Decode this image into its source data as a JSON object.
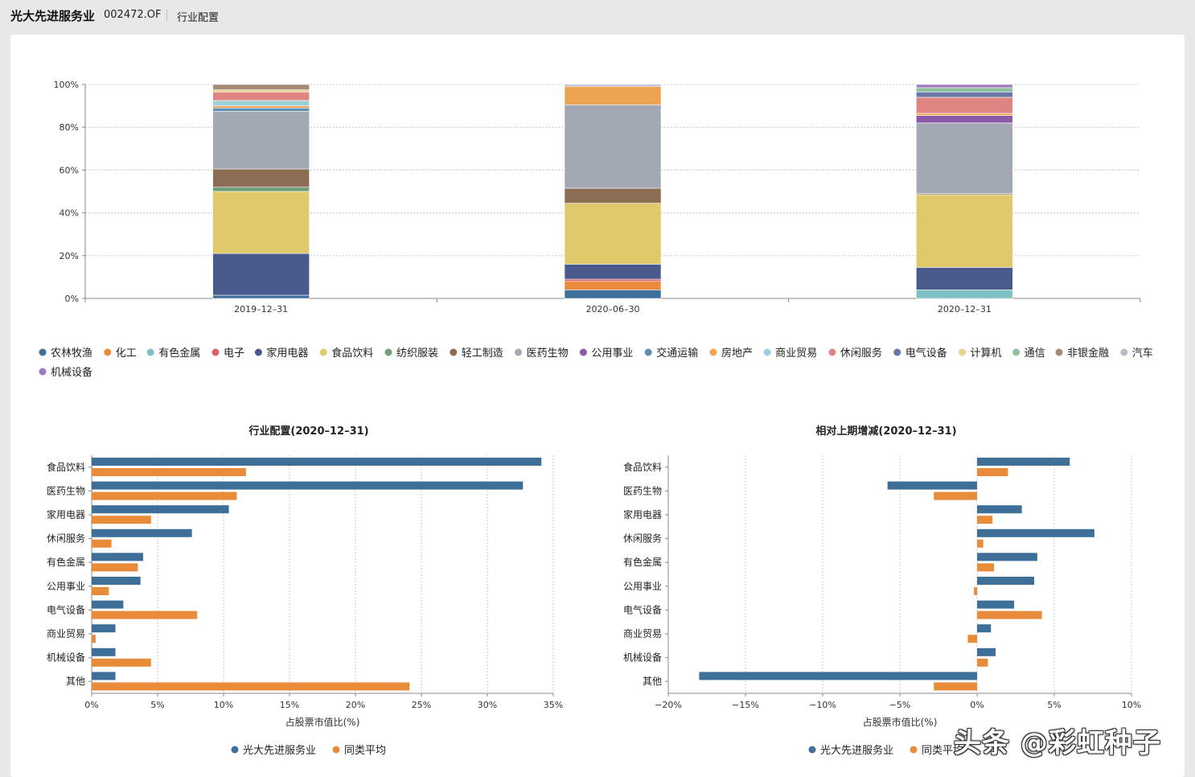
{
  "header": {
    "fund_name": "光大先进服务业",
    "fund_code": "002472.OF",
    "section": "行业配置"
  },
  "watermark": "头条 @彩虹种子",
  "chart_data": [
    {
      "type": "bar",
      "stacked": true,
      "percent": true,
      "title": "",
      "categories": [
        "2019–12–31",
        "2020–06–30",
        "2020–12–31"
      ],
      "y_ticks": [
        "0%",
        "20%",
        "40%",
        "60%",
        "80%",
        "100%"
      ],
      "ylim": [
        0,
        100
      ],
      "legend_position": "bottom",
      "series": [
        {
          "name": "农林牧渔",
          "color": "#3d6f98",
          "values": [
            1.5,
            4,
            0
          ]
        },
        {
          "name": "化工",
          "color": "#e88c3a",
          "values": [
            0,
            4,
            0
          ]
        },
        {
          "name": "有色金属",
          "color": "#7dc0c4",
          "values": [
            0,
            0,
            4
          ]
        },
        {
          "name": "电子",
          "color": "#d96165",
          "values": [
            0,
            1,
            0
          ]
        },
        {
          "name": "家用电器",
          "color": "#4a5a8c",
          "values": [
            19.5,
            7,
            10.5
          ]
        },
        {
          "name": "食品饮料",
          "color": "#e0c96a",
          "values": [
            29,
            28.5,
            34
          ]
        },
        {
          "name": "纺织服装",
          "color": "#6ea07a",
          "values": [
            2,
            0,
            0
          ]
        },
        {
          "name": "轻工制造",
          "color": "#8c6c53",
          "values": [
            8.5,
            7,
            0.5
          ]
        },
        {
          "name": "医药生物",
          "color": "#a2a8b4",
          "values": [
            27,
            39,
            33
          ]
        },
        {
          "name": "公用事业",
          "color": "#8b5aa8",
          "values": [
            0,
            0,
            3.5
          ]
        },
        {
          "name": "交通运输",
          "color": "#5e8eb4",
          "values": [
            1.5,
            0,
            0
          ]
        },
        {
          "name": "房地产",
          "color": "#eca452",
          "values": [
            1,
            8.5,
            1
          ]
        },
        {
          "name": "商业贸易",
          "color": "#9ccfd8",
          "values": [
            2.5,
            0,
            0
          ]
        },
        {
          "name": "休闲服务",
          "color": "#e08383",
          "values": [
            4,
            0,
            7.5
          ]
        },
        {
          "name": "电气设备",
          "color": "#6a75a8",
          "values": [
            0,
            0,
            2.5
          ]
        },
        {
          "name": "计算机",
          "color": "#e6d48a",
          "values": [
            1,
            0,
            0
          ]
        },
        {
          "name": "通信",
          "color": "#8fbf9c",
          "values": [
            0,
            0,
            2
          ]
        },
        {
          "name": "非银金融",
          "color": "#a48c73",
          "values": [
            2.5,
            0,
            0
          ]
        },
        {
          "name": "汽车",
          "color": "#b6bbc6",
          "values": [
            0,
            1,
            0
          ]
        },
        {
          "name": "机械设备",
          "color": "#9e7cbd",
          "values": [
            0,
            0,
            1.5
          ]
        }
      ]
    },
    {
      "type": "bar",
      "orientation": "horizontal",
      "title": "行业配置(2020–12–31)",
      "xlabel": "占股票市值比(%)",
      "categories": [
        "食品饮料",
        "医药生物",
        "家用电器",
        "休闲服务",
        "有色金属",
        "公用事业",
        "电气设备",
        "商业贸易",
        "机械设备",
        "其他"
      ],
      "xlim": [
        0,
        35
      ],
      "x_ticks": [
        0,
        5,
        10,
        15,
        20,
        25,
        30,
        35
      ],
      "x_tick_labels": [
        "0%",
        "5%",
        "10%",
        "15%",
        "20%",
        "25%",
        "30%",
        "35%"
      ],
      "series": [
        {
          "name": "光大先进服务业",
          "color": "#3d6f98",
          "values": [
            34.1,
            32.7,
            10.4,
            7.6,
            3.9,
            3.7,
            2.4,
            1.8,
            1.8,
            1.8
          ]
        },
        {
          "name": "同类平均",
          "color": "#e88c3a",
          "values": [
            11.7,
            11.0,
            4.5,
            1.5,
            3.5,
            1.3,
            8.0,
            0.3,
            4.5,
            24.1
          ]
        }
      ]
    },
    {
      "type": "bar",
      "orientation": "horizontal",
      "title": "相对上期增减(2020–12–31)",
      "xlabel": "占股票市值比(%)",
      "categories": [
        "食品饮料",
        "医药生物",
        "家用电器",
        "休闲服务",
        "有色金属",
        "公用事业",
        "电气设备",
        "商业贸易",
        "机械设备",
        "其他"
      ],
      "xlim": [
        -20,
        10
      ],
      "x_ticks": [
        -20,
        -15,
        -10,
        -5,
        0,
        5,
        10
      ],
      "x_tick_labels": [
        "−20%",
        "−15%",
        "−10%",
        "−5%",
        "0%",
        "5%",
        "10%"
      ],
      "series": [
        {
          "name": "光大先进服务业",
          "color": "#3d6f98",
          "values": [
            6.0,
            -5.8,
            2.9,
            7.6,
            3.9,
            3.7,
            2.4,
            0.9,
            1.2,
            -18.0
          ]
        },
        {
          "name": "同类平均",
          "color": "#e88c3a",
          "values": [
            2.0,
            -2.8,
            1.0,
            0.4,
            1.1,
            -0.2,
            4.2,
            -0.6,
            0.7,
            -2.8
          ]
        }
      ]
    }
  ]
}
